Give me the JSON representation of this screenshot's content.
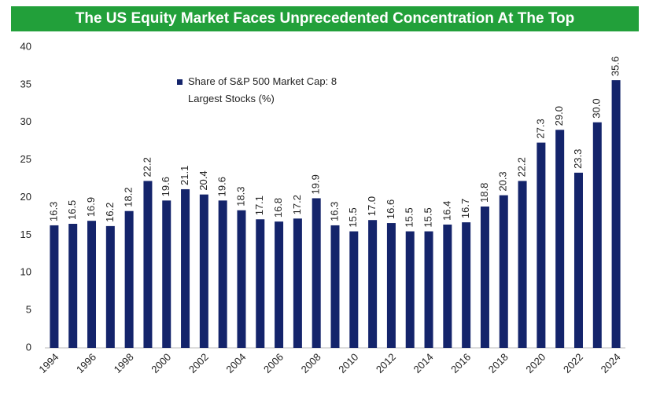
{
  "chart_data": {
    "type": "bar",
    "title": "The US Equity Market Faces Unprecedented Concentration At The Top",
    "categories": [
      "1994",
      null,
      "1996",
      null,
      "1998",
      null,
      "2000",
      null,
      "2002",
      null,
      "2004",
      null,
      "2006",
      null,
      "2008",
      null,
      "2010",
      null,
      "2012",
      null,
      "2014",
      null,
      "2016",
      null,
      "2018",
      null,
      "2020",
      null,
      "2022",
      null,
      "2024"
    ],
    "series": [
      {
        "name": "Share of S&P 500 Market Cap: 8 Largest Stocks (%)",
        "color": "#14246b",
        "values": [
          16.3,
          16.5,
          16.9,
          16.2,
          18.2,
          22.2,
          19.6,
          21.1,
          20.4,
          19.6,
          18.3,
          17.1,
          16.8,
          17.2,
          19.9,
          16.3,
          15.5,
          17.0,
          16.6,
          15.5,
          15.5,
          16.4,
          16.7,
          18.8,
          20.3,
          22.2,
          27.3,
          29.0,
          23.3,
          30.0,
          35.6
        ],
        "value_labels": [
          "16.3",
          "16.5",
          "16.9",
          "16.2",
          "18.2",
          "22.2",
          "19.6",
          "21.1",
          "20.4",
          "19.6",
          "18.3",
          "17.1",
          "16.8",
          "17.2",
          "19.9",
          "16.3",
          "15.5",
          "17.0",
          "16.6",
          "15.5",
          "15.5",
          "16.4",
          "16.7",
          "18.8",
          "20.3",
          "22.2",
          "27.3",
          "29.0",
          "23.3",
          "30.0",
          "35.6"
        ]
      }
    ],
    "ylim": [
      0,
      40
    ],
    "yticks": [
      0,
      5,
      10,
      15,
      20,
      25,
      30,
      35,
      40
    ],
    "grid": false,
    "legend": "top-left"
  }
}
